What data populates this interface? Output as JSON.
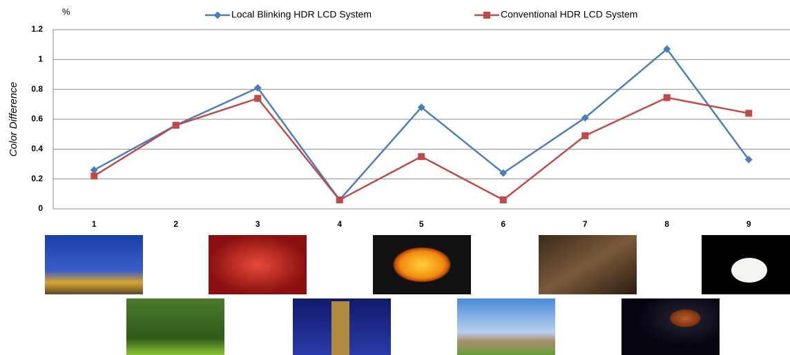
{
  "chart_data": {
    "type": "line",
    "y_unit": "%",
    "y_label": "Color Difference",
    "categories": [
      "1",
      "2",
      "3",
      "4",
      "5",
      "6",
      "7",
      "8",
      "9"
    ],
    "series": [
      {
        "name": "Local Blinking HDR LCD System",
        "color": "#4a7ebb",
        "marker": "diamond",
        "values": [
          0.26,
          0.56,
          0.81,
          0.06,
          0.68,
          0.24,
          0.61,
          1.07,
          0.33
        ]
      },
      {
        "name": "Conventional HDR LCD System",
        "color": "#be4b48",
        "marker": "square",
        "values": [
          0.22,
          0.56,
          0.74,
          0.06,
          0.35,
          0.06,
          0.49,
          0.745,
          0.64
        ]
      }
    ],
    "ylim": [
      0,
      1.2
    ],
    "yticks": [
      0,
      0.2,
      0.4,
      0.6,
      0.8,
      1,
      1.2
    ],
    "grid": true,
    "legend": "top"
  }
}
